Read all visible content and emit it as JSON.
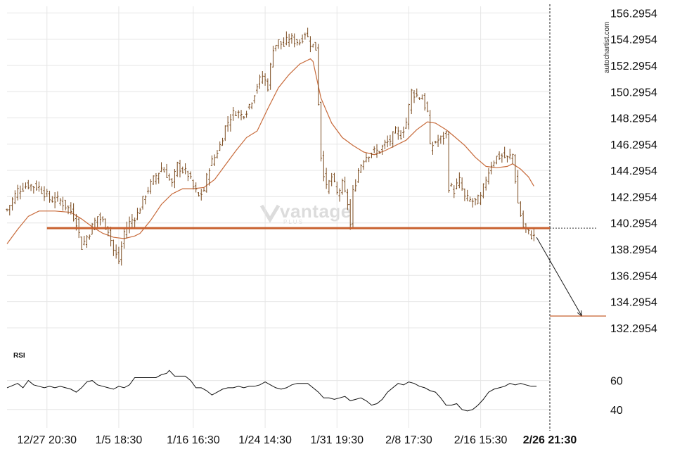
{
  "watermark": "autochartist.com",
  "logo": {
    "brand": "vantage",
    "sub": "PLUS"
  },
  "colors": {
    "candle": "#7a4a1e",
    "moving_average": "#c76a3a",
    "support": "#c8602e",
    "forecast": "#1a1a1a",
    "grid": "#e6e6e6",
    "rsi": "#111111"
  },
  "chart_data": [
    {
      "type": "candlestick",
      "title": "",
      "y_ticks": [
        "156.2954",
        "154.2954",
        "152.2954",
        "150.2954",
        "148.2954",
        "146.2954",
        "144.2954",
        "142.2954",
        "140.2954",
        "138.2954",
        "136.2954",
        "134.2954",
        "132.2954"
      ],
      "ylim": [
        131.0,
        156.8
      ],
      "x_ticks": [
        "12/27 20:30",
        "1/5 18:30",
        "1/16 16:30",
        "1/24 14:30",
        "1/31 19:30",
        "2/8 17:30",
        "2/16 15:30",
        "2/26 21:30"
      ],
      "x_tick_index": [
        15,
        42,
        70,
        97,
        124,
        151,
        178,
        204
      ],
      "bars_count": 205,
      "current_time_label": "2/26 21:30",
      "close_path": [
        [
          0,
          141.3
        ],
        [
          4,
          142.8
        ],
        [
          8,
          143.2
        ],
        [
          12,
          143.0
        ],
        [
          14,
          142.6
        ],
        [
          16,
          142.1
        ],
        [
          20,
          142.0
        ],
        [
          24,
          141.2
        ],
        [
          26,
          140.4
        ],
        [
          28,
          138.5
        ],
        [
          31,
          139.6
        ],
        [
          34,
          140.8
        ],
        [
          36,
          140.4
        ],
        [
          38,
          139.8
        ],
        [
          40,
          138.2
        ],
        [
          42,
          137.4
        ],
        [
          44,
          139.6
        ],
        [
          46,
          140.3
        ],
        [
          49,
          141.0
        ],
        [
          52,
          142.5
        ],
        [
          55,
          143.6
        ],
        [
          58,
          144.5
        ],
        [
          60,
          144.0
        ],
        [
          62,
          143.2
        ],
        [
          64,
          144.7
        ],
        [
          66,
          144.3
        ],
        [
          68,
          144.0
        ],
        [
          70,
          143.0
        ],
        [
          72,
          142.3
        ],
        [
          74,
          142.8
        ],
        [
          76,
          144.6
        ],
        [
          78,
          145.3
        ],
        [
          80,
          146.2
        ],
        [
          82,
          147.6
        ],
        [
          84,
          148.4
        ],
        [
          86,
          148.8
        ],
        [
          88,
          148.5
        ],
        [
          90,
          148.9
        ],
        [
          92,
          149.7
        ],
        [
          94,
          150.8
        ],
        [
          96,
          151.5
        ],
        [
          98,
          150.7
        ],
        [
          100,
          153.7
        ],
        [
          102,
          154.1
        ],
        [
          104,
          153.8
        ],
        [
          106,
          154.4
        ],
        [
          108,
          154.2
        ],
        [
          110,
          154.1
        ],
        [
          112,
          154.8
        ],
        [
          114,
          154.0
        ],
        [
          116,
          153.6
        ],
        [
          118,
          145.4
        ],
        [
          120,
          142.9
        ],
        [
          122,
          143.8
        ],
        [
          124,
          142.5
        ],
        [
          126,
          143.2
        ],
        [
          128,
          141.8
        ],
        [
          129,
          140.1
        ],
        [
          130,
          142.6
        ],
        [
          132,
          144.3
        ],
        [
          134,
          145.2
        ],
        [
          136,
          145.6
        ],
        [
          138,
          145.7
        ],
        [
          140,
          145.8
        ],
        [
          142,
          146.3
        ],
        [
          144,
          146.6
        ],
        [
          146,
          147.2
        ],
        [
          148,
          147.0
        ],
        [
          150,
          148.0
        ],
        [
          152,
          150.3
        ],
        [
          154,
          150.0
        ],
        [
          156,
          149.8
        ],
        [
          158,
          148.7
        ],
        [
          159,
          146.0
        ],
        [
          161,
          146.5
        ],
        [
          163,
          146.7
        ],
        [
          165,
          147.1
        ],
        [
          166,
          143.1
        ],
        [
          168,
          142.8
        ],
        [
          170,
          143.5
        ],
        [
          172,
          142.2
        ],
        [
          174,
          142.0
        ],
        [
          176,
          141.9
        ],
        [
          178,
          142.2
        ],
        [
          180,
          143.7
        ],
        [
          182,
          144.8
        ],
        [
          184,
          145.3
        ],
        [
          186,
          145.4
        ],
        [
          188,
          145.2
        ],
        [
          190,
          145.5
        ],
        [
          192,
          141.8
        ],
        [
          194,
          140.0
        ],
        [
          196,
          139.5
        ],
        [
          198,
          139.2
        ]
      ],
      "moving_average": [
        [
          0,
          138.7
        ],
        [
          4,
          139.8
        ],
        [
          8,
          140.8
        ],
        [
          12,
          141.2
        ],
        [
          18,
          141.2
        ],
        [
          24,
          141.1
        ],
        [
          28,
          140.6
        ],
        [
          32,
          140.0
        ],
        [
          36,
          139.5
        ],
        [
          40,
          139.2
        ],
        [
          44,
          139.1
        ],
        [
          48,
          139.3
        ],
        [
          50,
          139.5
        ],
        [
          54,
          140.5
        ],
        [
          58,
          141.7
        ],
        [
          62,
          142.5
        ],
        [
          66,
          142.9
        ],
        [
          70,
          142.9
        ],
        [
          74,
          143.0
        ],
        [
          78,
          143.6
        ],
        [
          82,
          144.7
        ],
        [
          86,
          145.8
        ],
        [
          90,
          146.8
        ],
        [
          94,
          147.3
        ],
        [
          98,
          149.0
        ],
        [
          102,
          150.6
        ],
        [
          106,
          151.6
        ],
        [
          110,
          152.4
        ],
        [
          114,
          152.8
        ],
        [
          115,
          152.6
        ],
        [
          118,
          149.8
        ],
        [
          122,
          147.9
        ],
        [
          126,
          146.8
        ],
        [
          130,
          146.2
        ],
        [
          134,
          145.7
        ],
        [
          138,
          145.5
        ],
        [
          142,
          145.8
        ],
        [
          146,
          146.2
        ],
        [
          150,
          146.6
        ],
        [
          154,
          147.4
        ],
        [
          158,
          148.0
        ],
        [
          161,
          147.9
        ],
        [
          165,
          147.4
        ],
        [
          168,
          146.9
        ],
        [
          172,
          146.2
        ],
        [
          176,
          145.3
        ],
        [
          180,
          144.6
        ],
        [
          184,
          144.5
        ],
        [
          188,
          144.6
        ],
        [
          190,
          144.8
        ],
        [
          193,
          144.4
        ],
        [
          196,
          143.8
        ],
        [
          198,
          143.1
        ]
      ],
      "support_level": 139.9,
      "support_start_index": 15,
      "forecast": {
        "from_index": 199,
        "from_value": 139.2,
        "to_index": 216,
        "to_value": 133.2
      },
      "target_level": 133.2
    },
    {
      "type": "line",
      "title": "RSI",
      "y_ticks": [
        "60",
        "40"
      ],
      "levels": [
        60,
        40
      ],
      "ylim": [
        36,
        70
      ],
      "path": [
        [
          0,
          55
        ],
        [
          4,
          58
        ],
        [
          6,
          55
        ],
        [
          8,
          60
        ],
        [
          10,
          57
        ],
        [
          12,
          56
        ],
        [
          14,
          55
        ],
        [
          16,
          56
        ],
        [
          18,
          55
        ],
        [
          20,
          56
        ],
        [
          22,
          55
        ],
        [
          24,
          54
        ],
        [
          26,
          52
        ],
        [
          28,
          55
        ],
        [
          30,
          59
        ],
        [
          32,
          60
        ],
        [
          34,
          57
        ],
        [
          36,
          56
        ],
        [
          38,
          55
        ],
        [
          40,
          54
        ],
        [
          42,
          56
        ],
        [
          44,
          55
        ],
        [
          46,
          57
        ],
        [
          48,
          62
        ],
        [
          50,
          62
        ],
        [
          52,
          62
        ],
        [
          54,
          62
        ],
        [
          56,
          62
        ],
        [
          58,
          64
        ],
        [
          60,
          65
        ],
        [
          61,
          67
        ],
        [
          63,
          63
        ],
        [
          65,
          63
        ],
        [
          67,
          63
        ],
        [
          69,
          60
        ],
        [
          71,
          55
        ],
        [
          73,
          55
        ],
        [
          75,
          53
        ],
        [
          77,
          50
        ],
        [
          79,
          52
        ],
        [
          81,
          54
        ],
        [
          83,
          55
        ],
        [
          85,
          55
        ],
        [
          87,
          56
        ],
        [
          89,
          55
        ],
        [
          91,
          56
        ],
        [
          93,
          56
        ],
        [
          95,
          57
        ],
        [
          97,
          59
        ],
        [
          99,
          57
        ],
        [
          101,
          55
        ],
        [
          103,
          54
        ],
        [
          105,
          55
        ],
        [
          107,
          57
        ],
        [
          109,
          58
        ],
        [
          111,
          58
        ],
        [
          113,
          58
        ],
        [
          115,
          55
        ],
        [
          117,
          52
        ],
        [
          119,
          48
        ],
        [
          121,
          48
        ],
        [
          123,
          47
        ],
        [
          125,
          48
        ],
        [
          127,
          49
        ],
        [
          129,
          46
        ],
        [
          131,
          47
        ],
        [
          133,
          48
        ],
        [
          135,
          46
        ],
        [
          137,
          43
        ],
        [
          139,
          44
        ],
        [
          141,
          47
        ],
        [
          143,
          52
        ],
        [
          145,
          55
        ],
        [
          147,
          58
        ],
        [
          149,
          57
        ],
        [
          151,
          59
        ],
        [
          153,
          58
        ],
        [
          155,
          56
        ],
        [
          157,
          55
        ],
        [
          159,
          53
        ],
        [
          161,
          52
        ],
        [
          163,
          48
        ],
        [
          165,
          43
        ],
        [
          167,
          43
        ],
        [
          169,
          44
        ],
        [
          171,
          40
        ],
        [
          173,
          39
        ],
        [
          175,
          40
        ],
        [
          177,
          43
        ],
        [
          179,
          47
        ],
        [
          181,
          52
        ],
        [
          183,
          54
        ],
        [
          185,
          55
        ],
        [
          187,
          56
        ],
        [
          189,
          58
        ],
        [
          191,
          57
        ],
        [
          193,
          58
        ],
        [
          195,
          57
        ],
        [
          197,
          56
        ],
        [
          199,
          56
        ]
      ]
    }
  ]
}
